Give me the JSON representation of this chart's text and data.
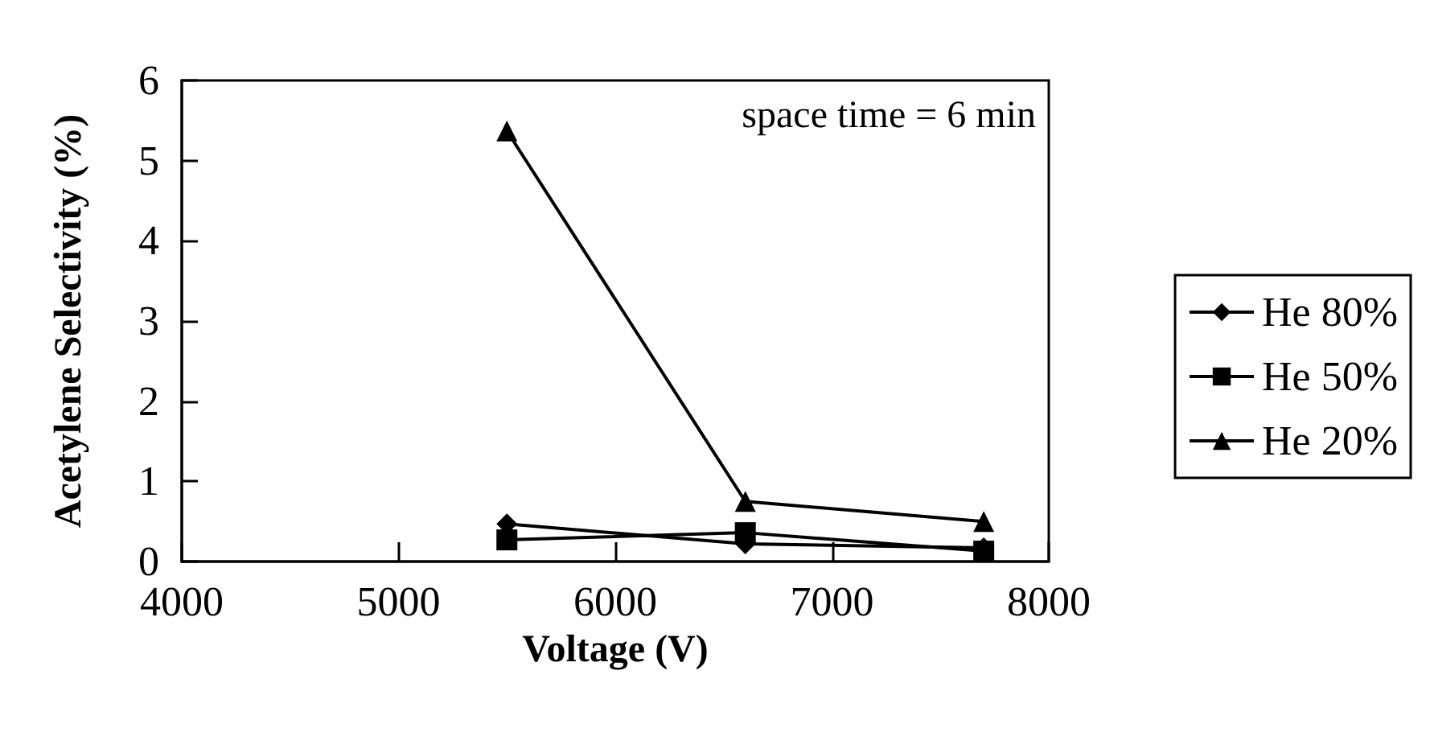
{
  "chart_data": {
    "type": "line",
    "xlabel": "Voltage (V)",
    "ylabel": "Acetylene Selectivity (%)",
    "x": [
      5500,
      6600,
      7700
    ],
    "xlim": [
      4000,
      8000
    ],
    "xticks": [
      4000,
      5000,
      6000,
      7000,
      8000
    ],
    "ylim": [
      0,
      6
    ],
    "yticks": [
      0,
      1,
      2,
      3,
      4,
      5,
      6
    ],
    "grid": false,
    "legend": "right",
    "line_style": "solid",
    "annotations": [
      "space time = 6 min"
    ],
    "series": [
      {
        "name": "He 80%",
        "color": "#000000",
        "marker": "diamond",
        "values": [
          0.47,
          0.22,
          0.17
        ]
      },
      {
        "name": "He 50%",
        "color": "#000000",
        "marker": "square",
        "values": [
          0.27,
          0.36,
          0.13
        ]
      },
      {
        "name": "He 20%",
        "color": "#000000",
        "marker": "triangle",
        "values": [
          5.37,
          0.75,
          0.5
        ]
      }
    ]
  }
}
